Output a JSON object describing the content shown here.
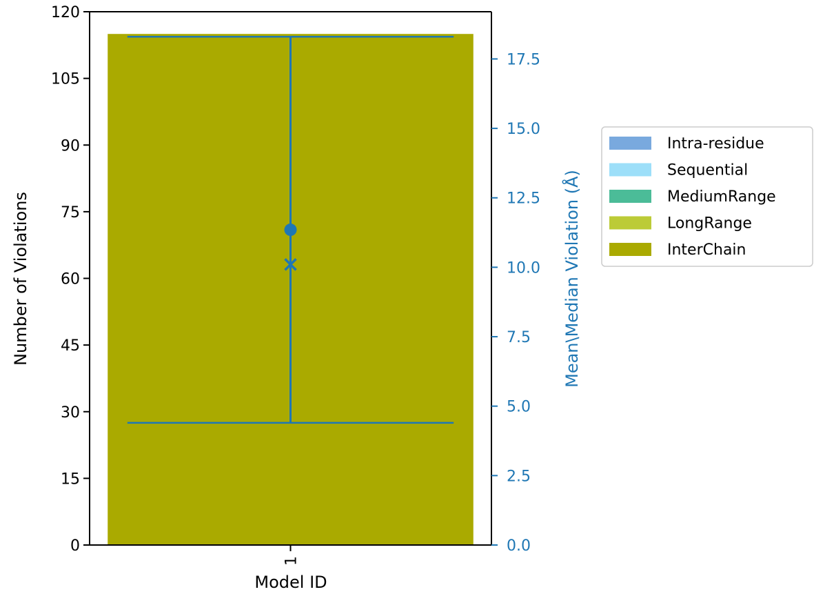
{
  "chart_data": {
    "type": "bar",
    "stacked": true,
    "categories": [
      "1"
    ],
    "series": [
      {
        "name": "Intra-residue",
        "values": [
          0
        ],
        "color": "#79a9de"
      },
      {
        "name": "Sequential",
        "values": [
          0
        ],
        "color": "#9ddff9"
      },
      {
        "name": "MediumRange",
        "values": [
          0
        ],
        "color": "#4bbc98"
      },
      {
        "name": "LongRange",
        "values": [
          0
        ],
        "color": "#bccb37"
      },
      {
        "name": "InterChain",
        "values": [
          115
        ],
        "color": "#aaaa00"
      }
    ],
    "xlabel": "Model ID",
    "ylabel": "Number of Violations",
    "ylim": [
      0,
      120
    ],
    "yticks": [
      "0",
      "15",
      "30",
      "45",
      "60",
      "75",
      "90",
      "105",
      "120"
    ],
    "secondary_axis": {
      "ylabel": "Mean\\Median Violation (Å)",
      "ylim": [
        0,
        19.2
      ],
      "yticks": [
        "0.0",
        "2.5",
        "5.0",
        "7.5",
        "10.0",
        "12.5",
        "15.0",
        "17.5"
      ],
      "color": "#1f77b4",
      "mean": [
        11.35
      ],
      "median": [
        10.1
      ],
      "range_low": [
        4.4
      ],
      "range_high": [
        18.3
      ]
    },
    "legend_position": "right",
    "grid": false
  }
}
